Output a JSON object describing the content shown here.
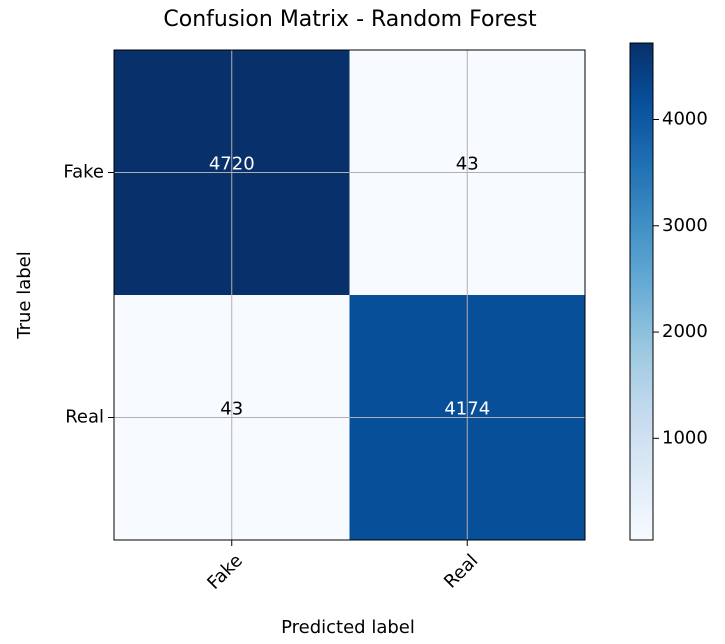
{
  "chart_data": {
    "type": "heatmap",
    "title": "Confusion Matrix - Random Forest",
    "x_label": "Predicted label",
    "y_label": "True label",
    "x_categories": [
      "Fake",
      "Real"
    ],
    "y_categories": [
      "Fake",
      "Real"
    ],
    "values": [
      [
        4720,
        43
      ],
      [
        43,
        4174
      ]
    ],
    "clim": [
      43,
      4720
    ],
    "cticks": [
      1000,
      2000,
      3000,
      4000
    ],
    "colormap": [
      "#f7fbff",
      "#deebf7",
      "#c6dbef",
      "#9ecae1",
      "#6baed6",
      "#4292c6",
      "#2171b5",
      "#08519c",
      "#08306b"
    ],
    "grid": true
  }
}
